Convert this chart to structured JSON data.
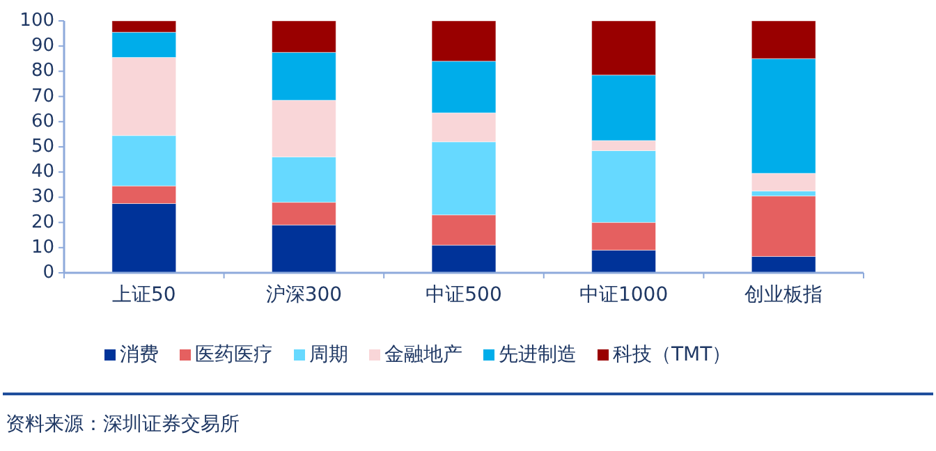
{
  "chart_data": {
    "type": "bar",
    "stacked": true,
    "categories": [
      "上证50",
      "沪深300",
      "中证500",
      "中证1000",
      "创业板指"
    ],
    "series": [
      {
        "name": "消费",
        "color": "#003399",
        "values": [
          27.5,
          19,
          11,
          9,
          6.5
        ]
      },
      {
        "name": "医药医疗",
        "color": "#e56060",
        "values": [
          7,
          9,
          12,
          11,
          24
        ]
      },
      {
        "name": "周期",
        "color": "#66d9ff",
        "values": [
          20,
          18,
          29,
          28.5,
          2
        ]
      },
      {
        "name": "金融地产",
        "color": "#f9d6d8",
        "values": [
          31,
          22.5,
          11.5,
          4,
          7
        ]
      },
      {
        "name": "先进制造",
        "color": "#00adea",
        "values": [
          10,
          19,
          20.5,
          26,
          45.5
        ]
      },
      {
        "name": "科技（TMT）",
        "color": "#990000",
        "values": [
          4.5,
          12.5,
          16,
          21.5,
          15
        ]
      }
    ],
    "ylim": [
      0,
      100
    ],
    "yticks": [
      0,
      10,
      20,
      30,
      40,
      50,
      60,
      70,
      80,
      90,
      100
    ],
    "grid": false,
    "legend": "bottom",
    "annotations": [
      "资料来源：深圳证券交易所"
    ]
  }
}
